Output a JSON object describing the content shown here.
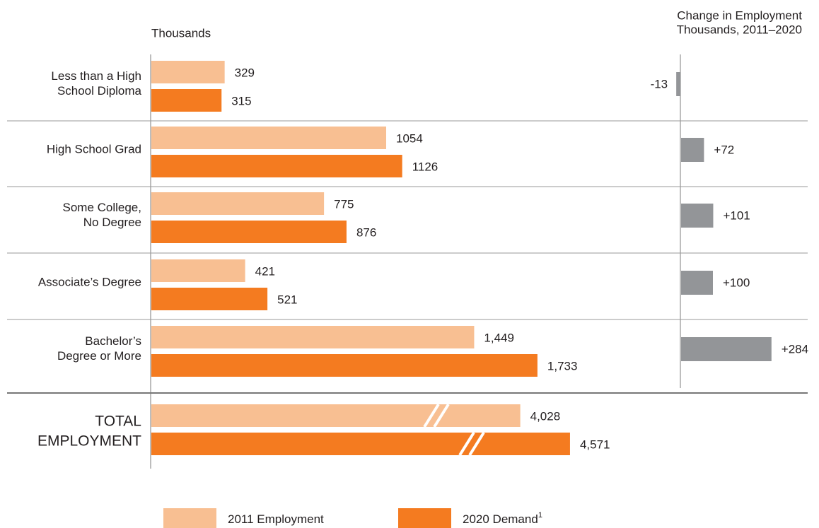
{
  "chart_data": {
    "type": "bar",
    "orientation": "horizontal",
    "xlabel": "Thousands",
    "change_title": [
      "Change in Employment",
      "Thousands, 2011–2020"
    ],
    "colors": {
      "2011 Employment": "#f8bf92",
      "2020 Demand": "#f47b20",
      "change": "#939598",
      "axis": "#9a9a9a"
    },
    "categories": [
      {
        "lines": [
          "Less than a High",
          "School Diploma"
        ]
      },
      {
        "lines": [
          "High School Grad"
        ]
      },
      {
        "lines": [
          "Some College,",
          "No Degree"
        ]
      },
      {
        "lines": [
          "Associate’s Degree"
        ]
      },
      {
        "lines": [
          "Bachelor’s",
          "Degree or More"
        ]
      }
    ],
    "series": [
      {
        "name": "2011 Employment",
        "values": [
          329,
          1054,
          775,
          421,
          1449
        ],
        "labels": [
          "329",
          "1054",
          "775",
          "421",
          "1,449"
        ]
      },
      {
        "name": "2020 Demand",
        "values": [
          315,
          1126,
          876,
          521,
          1733
        ],
        "labels": [
          "315",
          "1126",
          "876",
          "521",
          "1,733"
        ]
      }
    ],
    "change": {
      "values": [
        -13,
        72,
        101,
        100,
        284
      ],
      "labels": [
        "-13",
        "+72",
        "+101",
        "+100",
        "+284"
      ]
    },
    "total": {
      "lines": [
        "TOTAL",
        "EMPLOYMENT"
      ],
      "values": [
        4028,
        4571
      ],
      "labels": [
        "4,028",
        "4,571"
      ],
      "axis_break": true
    },
    "legend": {
      "placement": "bottom",
      "items": [
        {
          "name": "2011 Employment",
          "label": "2011 Employment",
          "sup": ""
        },
        {
          "name": "2020 Demand",
          "label": "2020 Demand",
          "sup": "1"
        }
      ]
    }
  }
}
